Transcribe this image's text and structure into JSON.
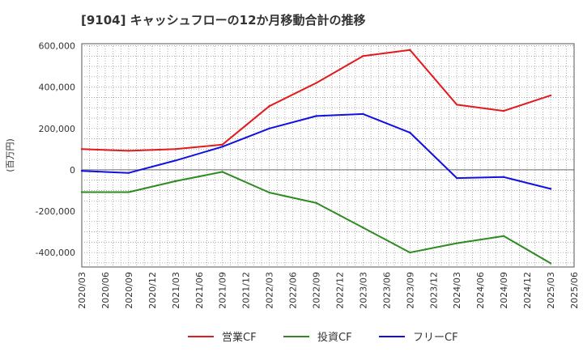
{
  "title": "[9104]  キャッシュフローの12か月移動合計の推移",
  "chart_data": {
    "type": "line",
    "title": "[9104]  キャッシュフローの12か月移動合計の推移",
    "xlabel": "",
    "ylabel": "(百万円)",
    "ylim": [
      -470000,
      610000
    ],
    "yticks": [
      600000,
      400000,
      200000,
      0,
      -200000,
      -400000
    ],
    "ytick_labels": [
      "600,000",
      "400,000",
      "200,000",
      "0",
      "-200,000",
      "-400,000"
    ],
    "x_categories": [
      "2020/03",
      "2020/06",
      "2020/09",
      "2020/12",
      "2021/03",
      "2021/06",
      "2021/09",
      "2021/12",
      "2022/03",
      "2022/06",
      "2022/09",
      "2022/12",
      "2023/03",
      "2023/06",
      "2023/09",
      "2023/12",
      "2024/03",
      "2024/06",
      "2024/09",
      "2024/12",
      "2025/03",
      "2025/06"
    ],
    "grid": true,
    "legend_position": "bottom",
    "series": [
      {
        "name": "営業CF",
        "color": "#e31a1c",
        "points": [
          {
            "x": "2020/03",
            "y": 100000
          },
          {
            "x": "2020/09",
            "y": 92000
          },
          {
            "x": "2021/03",
            "y": 100000
          },
          {
            "x": "2021/09",
            "y": 122000
          },
          {
            "x": "2022/03",
            "y": 308000
          },
          {
            "x": "2022/09",
            "y": 420000
          },
          {
            "x": "2023/03",
            "y": 550000
          },
          {
            "x": "2023/09",
            "y": 580000
          },
          {
            "x": "2024/03",
            "y": 315000
          },
          {
            "x": "2024/09",
            "y": 285000
          },
          {
            "x": "2025/03",
            "y": 360000
          }
        ]
      },
      {
        "name": "投資CF",
        "color": "#2e8b22",
        "points": [
          {
            "x": "2020/03",
            "y": -108000
          },
          {
            "x": "2020/09",
            "y": -108000
          },
          {
            "x": "2021/03",
            "y": -55000
          },
          {
            "x": "2021/09",
            "y": -10000
          },
          {
            "x": "2022/03",
            "y": -110000
          },
          {
            "x": "2022/09",
            "y": -160000
          },
          {
            "x": "2023/03",
            "y": -280000
          },
          {
            "x": "2023/09",
            "y": -400000
          },
          {
            "x": "2024/03",
            "y": -355000
          },
          {
            "x": "2024/09",
            "y": -320000
          },
          {
            "x": "2025/03",
            "y": -452000
          }
        ]
      },
      {
        "name": "フリーCF",
        "color": "#1010e0",
        "points": [
          {
            "x": "2020/03",
            "y": -5000
          },
          {
            "x": "2020/09",
            "y": -15000
          },
          {
            "x": "2021/03",
            "y": 45000
          },
          {
            "x": "2021/09",
            "y": 112000
          },
          {
            "x": "2022/03",
            "y": 200000
          },
          {
            "x": "2022/09",
            "y": 260000
          },
          {
            "x": "2023/03",
            "y": 270000
          },
          {
            "x": "2023/09",
            "y": 180000
          },
          {
            "x": "2024/03",
            "y": -40000
          },
          {
            "x": "2024/09",
            "y": -35000
          },
          {
            "x": "2025/03",
            "y": -92000
          }
        ]
      }
    ]
  }
}
